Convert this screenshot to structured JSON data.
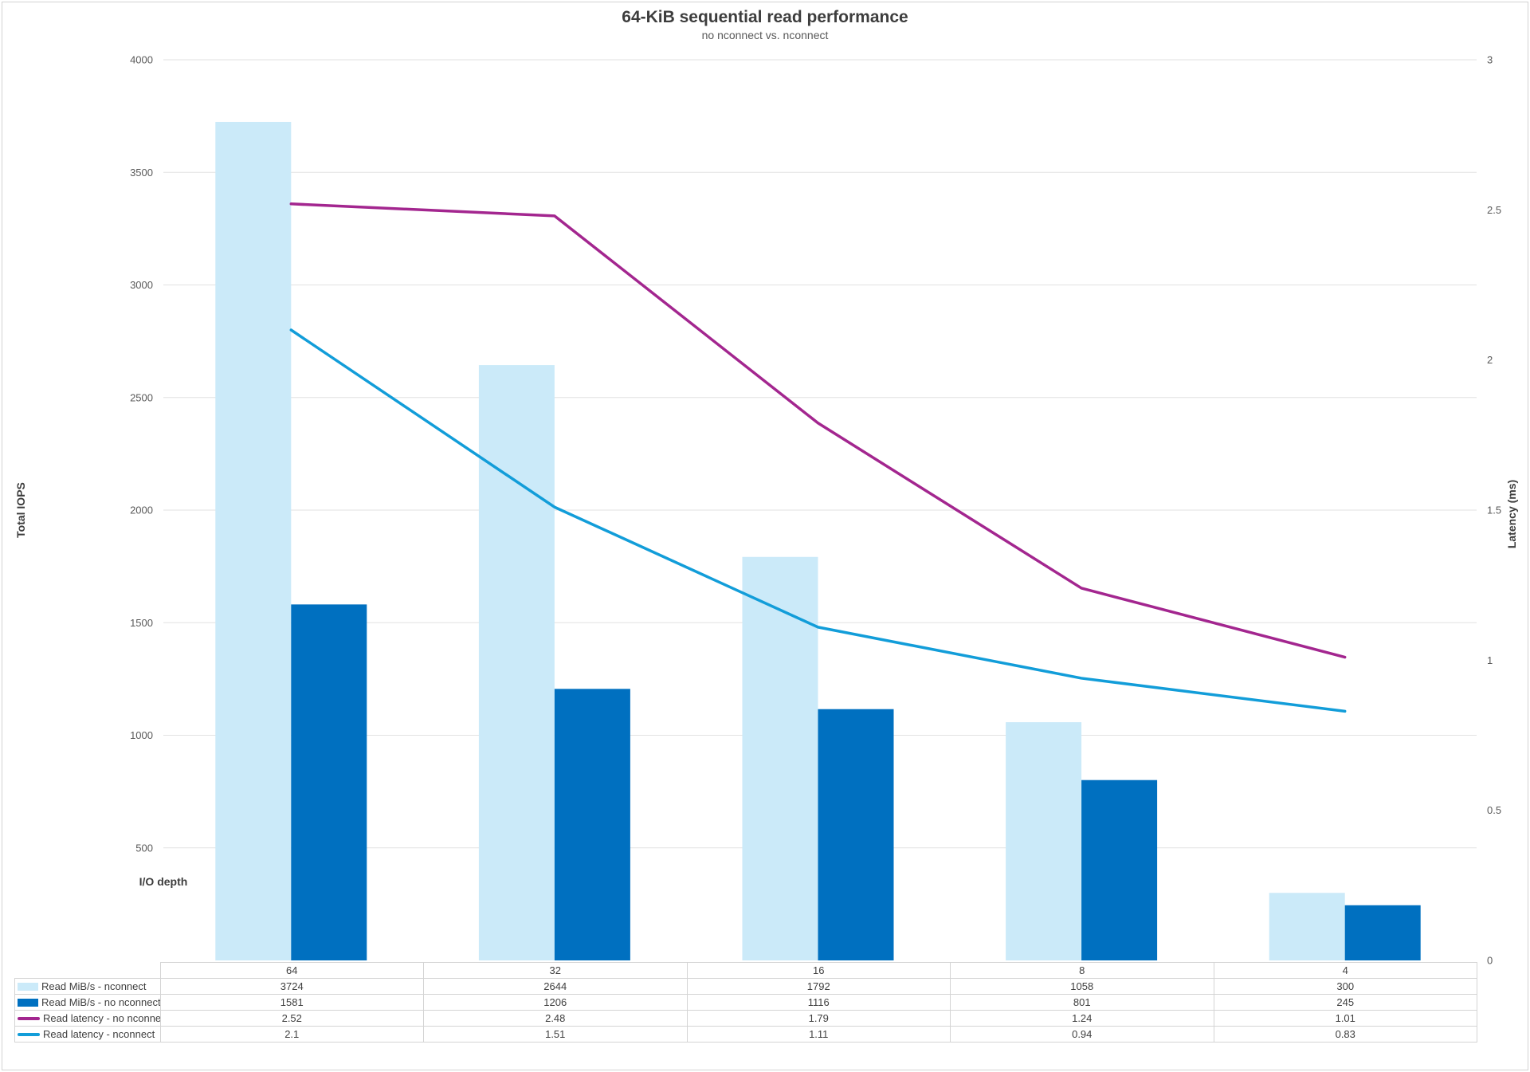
{
  "colors": {
    "bar_nconnect": "#cbeaf9",
    "bar_no_nconnect": "#0070c0",
    "line_no_nconnect": "#a3268f",
    "line_nconnect": "#129dd9",
    "gridline": "#e2e2e2",
    "table_border": "#d4d4d4",
    "tick_text": "#595959",
    "title_text": "#3d3d3d"
  },
  "chart_data": {
    "type": "combo",
    "title": "64-KiB sequential read performance",
    "subtitle": "no nconnect vs. nconnect",
    "x_axis_label": "I/O depth",
    "categories": [
      "64",
      "32",
      "16",
      "8",
      "4"
    ],
    "left_axis": {
      "label": "Total IOPS",
      "min": 0,
      "max": 4000,
      "tick_step": 500,
      "tick_labels": [
        "4000",
        "3500",
        "3000",
        "2500",
        "2000",
        "1500",
        "1000",
        "500"
      ]
    },
    "right_axis": {
      "label": "Latency (ms)",
      "min": 0,
      "max": 3,
      "tick_step": 0.5,
      "tick_labels": [
        "3",
        "2.5",
        "2",
        "1.5",
        "1",
        "0.5",
        "0"
      ]
    },
    "grid": "horizontal",
    "legend_position": "table-bottom-left",
    "series": [
      {
        "name": "Read MiB/s - nconnect",
        "type": "bar",
        "axis": "left",
        "color": "#cbeaf9",
        "values": [
          3724,
          2644,
          1792,
          1058,
          300
        ],
        "display": [
          "3724",
          "2644",
          "1792",
          "1058",
          "300"
        ]
      },
      {
        "name": "Read MiB/s - no nconnect",
        "type": "bar",
        "axis": "left",
        "color": "#0070c0",
        "values": [
          1581,
          1206,
          1116,
          801,
          245
        ],
        "display": [
          "1581",
          "1206",
          "1116",
          "801",
          "245"
        ]
      },
      {
        "name": "Read latency - no nconnect",
        "type": "line",
        "axis": "right",
        "color": "#a3268f",
        "values": [
          2.52,
          2.48,
          1.79,
          1.24,
          1.01
        ],
        "display": [
          "2.52",
          "2.48",
          "1.79",
          "1.24",
          "1.01"
        ]
      },
      {
        "name": "Read latency - nconnect",
        "type": "line",
        "axis": "right",
        "color": "#129dd9",
        "values": [
          2.1,
          1.51,
          1.11,
          0.94,
          0.83
        ],
        "display": [
          "2.1",
          "1.51",
          "1.11",
          "0.94",
          "0.83"
        ]
      }
    ]
  }
}
